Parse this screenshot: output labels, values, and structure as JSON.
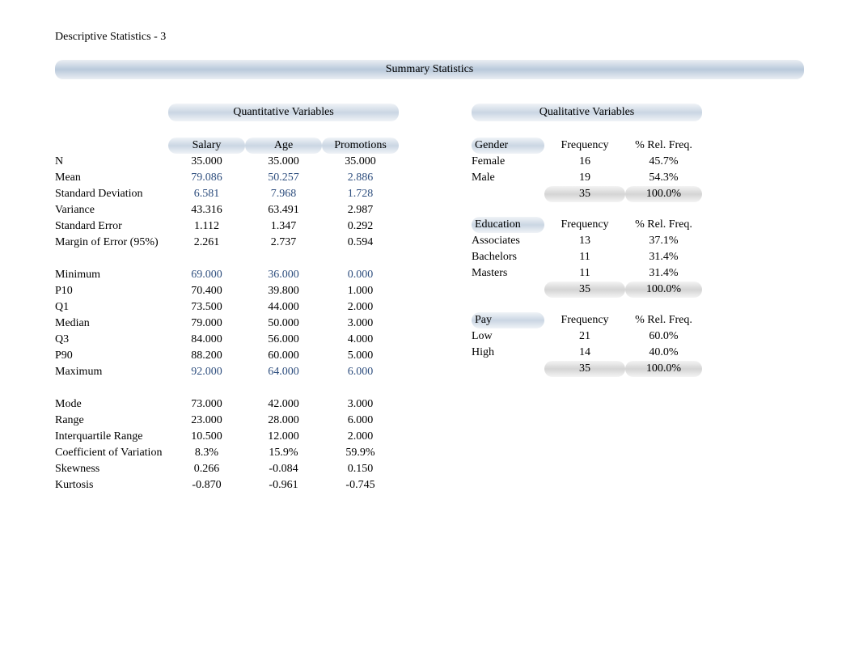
{
  "page_title": "Descriptive Statistics - 3",
  "summary_header": "Summary Statistics",
  "quant": {
    "section_label": "Quantitative Variables",
    "columns": [
      "Salary",
      "Age",
      "Promotions"
    ],
    "rows": [
      {
        "label": "N",
        "vals": [
          "35.000",
          "35.000",
          "35.000"
        ],
        "highlight": false
      },
      {
        "label": "Mean",
        "vals": [
          "79.086",
          "50.257",
          "2.886"
        ],
        "highlight": true
      },
      {
        "label": "Standard Deviation",
        "vals": [
          "6.581",
          "7.968",
          "1.728"
        ],
        "highlight": true
      },
      {
        "label": "Variance",
        "vals": [
          "43.316",
          "63.491",
          "2.987"
        ],
        "highlight": false
      },
      {
        "label": "Standard Error",
        "vals": [
          "1.112",
          "1.347",
          "0.292"
        ],
        "highlight": false
      },
      {
        "label": "Margin of Error (95%)",
        "vals": [
          "2.261",
          "2.737",
          "0.594"
        ],
        "highlight": false
      },
      {
        "spacer": true
      },
      {
        "label": "Minimum",
        "vals": [
          "69.000",
          "36.000",
          "0.000"
        ],
        "highlight": true
      },
      {
        "label": "P10",
        "vals": [
          "70.400",
          "39.800",
          "1.000"
        ],
        "highlight": false
      },
      {
        "label": "Q1",
        "vals": [
          "73.500",
          "44.000",
          "2.000"
        ],
        "highlight": false
      },
      {
        "label": "Median",
        "vals": [
          "79.000",
          "50.000",
          "3.000"
        ],
        "highlight": false
      },
      {
        "label": "Q3",
        "vals": [
          "84.000",
          "56.000",
          "4.000"
        ],
        "highlight": false
      },
      {
        "label": "P90",
        "vals": [
          "88.200",
          "60.000",
          "5.000"
        ],
        "highlight": false
      },
      {
        "label": "Maximum",
        "vals": [
          "92.000",
          "64.000",
          "6.000"
        ],
        "highlight": true
      },
      {
        "spacer": true
      },
      {
        "label": "Mode",
        "vals": [
          "73.000",
          "42.000",
          "3.000"
        ],
        "highlight": false
      },
      {
        "label": "Range",
        "vals": [
          "23.000",
          "28.000",
          "6.000"
        ],
        "highlight": false
      },
      {
        "label": "Interquartile Range",
        "vals": [
          "10.500",
          "12.000",
          "2.000"
        ],
        "highlight": false
      },
      {
        "label": "Coefficient of Variation",
        "vals": [
          "8.3%",
          "15.9%",
          "59.9%"
        ],
        "highlight": false
      },
      {
        "label": "Skewness",
        "vals": [
          "0.266",
          "-0.084",
          "0.150"
        ],
        "highlight": false
      },
      {
        "label": "Kurtosis",
        "vals": [
          "-0.870",
          "-0.961",
          "-0.745"
        ],
        "highlight": false
      }
    ]
  },
  "qual": {
    "section_label": "Qualitative Variables",
    "col_headers": [
      "Frequency",
      "% Rel. Freq."
    ],
    "groups": [
      {
        "name": "Gender",
        "rows": [
          {
            "label": "Female",
            "freq": "16",
            "pct": "45.7%"
          },
          {
            "label": "Male",
            "freq": "19",
            "pct": "54.3%"
          }
        ],
        "total": {
          "freq": "35",
          "pct": "100.0%"
        }
      },
      {
        "name": "Education",
        "rows": [
          {
            "label": "Associates",
            "freq": "13",
            "pct": "37.1%"
          },
          {
            "label": "Bachelors",
            "freq": "11",
            "pct": "31.4%"
          },
          {
            "label": "Masters",
            "freq": "11",
            "pct": "31.4%"
          }
        ],
        "total": {
          "freq": "35",
          "pct": "100.0%"
        }
      },
      {
        "name": "Pay",
        "rows": [
          {
            "label": "Low",
            "freq": "21",
            "pct": "60.0%"
          },
          {
            "label": "High",
            "freq": "14",
            "pct": "40.0%"
          }
        ],
        "total": {
          "freq": "35",
          "pct": "100.0%"
        }
      }
    ]
  },
  "styles": {
    "background_color": "#ffffff",
    "text_color": "#000000",
    "highlight_color": "#2e4e7e",
    "header_gradient": [
      "#eaeef3",
      "#b9c9db",
      "#eaeef3"
    ],
    "subheader_gradient": [
      "#f0f3f7",
      "#cad6e3",
      "#f0f3f7"
    ],
    "total_gradient": [
      "#f4f4f4",
      "#d4d4d4",
      "#f4f4f4"
    ],
    "font_family": "Times New Roman",
    "font_size_pt": 11
  }
}
